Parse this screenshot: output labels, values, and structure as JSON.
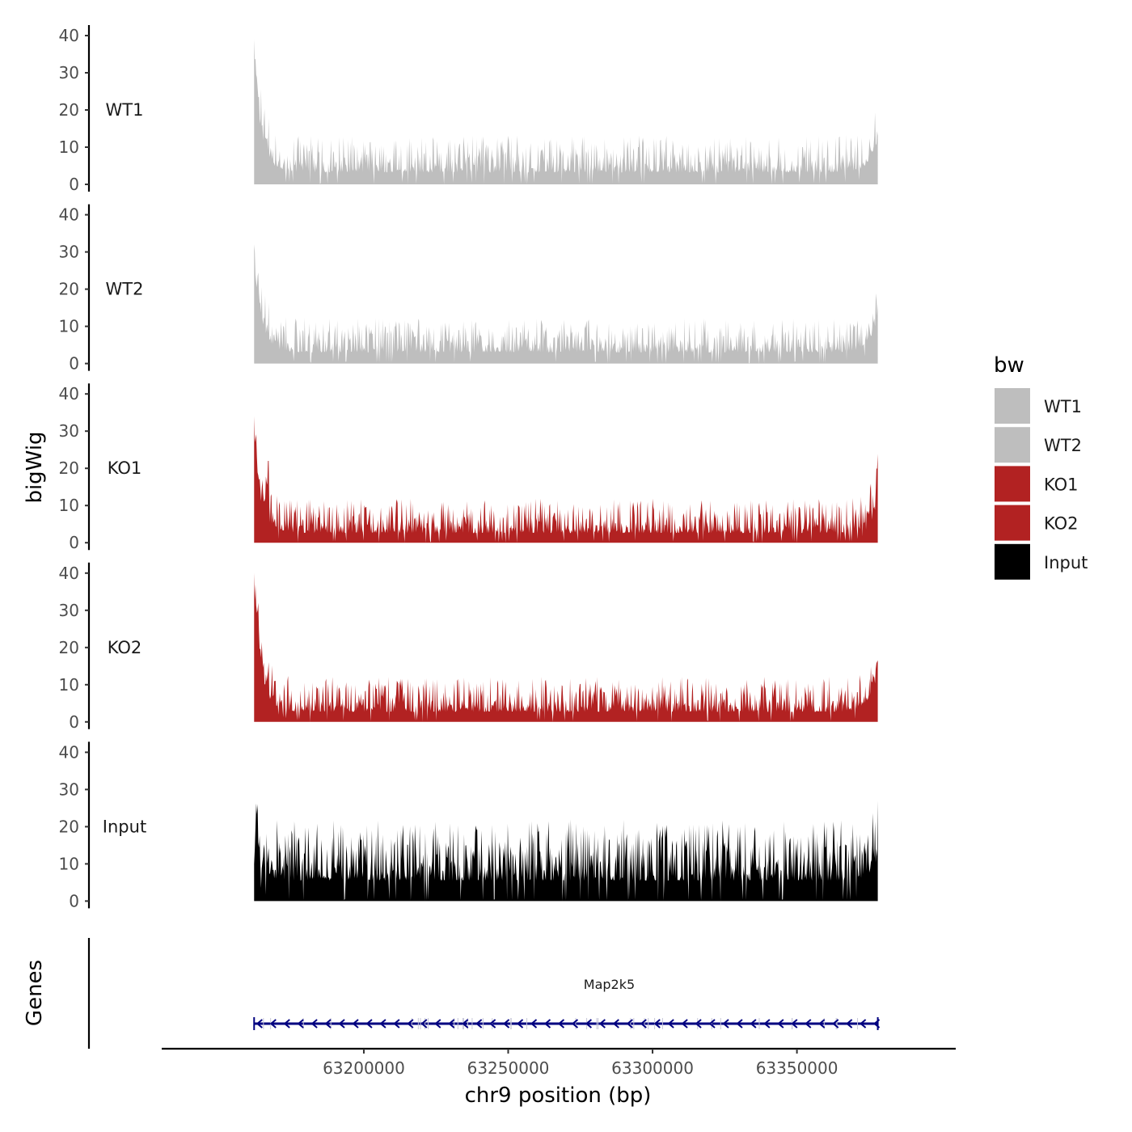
{
  "chart_data": {
    "type": "area",
    "chromosome": "chr9",
    "xlabel": "chr9 position (bp)",
    "ylabel_tracks": "bigWig",
    "ylabel_genes": "Genes",
    "xlim": [
      63130000,
      63405000
    ],
    "data_range": [
      63162000,
      63378000
    ],
    "x_ticks": [
      63200000,
      63250000,
      63300000,
      63350000
    ],
    "x_tick_labels": [
      "63200000",
      "63250000",
      "63300000",
      "63350000"
    ],
    "ylim": [
      0,
      40
    ],
    "y_ticks": [
      0,
      10,
      20,
      30,
      40
    ],
    "y_tick_labels": [
      "0",
      "10",
      "20",
      "30",
      "40"
    ],
    "legend": {
      "title": "bw",
      "position": "right",
      "entries": [
        {
          "label": "WT1",
          "color": "#bebebe"
        },
        {
          "label": "WT2",
          "color": "#bebebe"
        },
        {
          "label": "KO1",
          "color": "#b22222"
        },
        {
          "label": "KO2",
          "color": "#b22222"
        },
        {
          "label": "Input",
          "color": "#000000"
        }
      ]
    },
    "tracks": [
      {
        "name": "WT1",
        "color": "#bebebe",
        "seed": 11,
        "start_peak": 39,
        "end_peak": 14,
        "baseline": 3.2,
        "noise": 4.5,
        "spikes": [
          [
            63181000,
            9
          ],
          [
            63201000,
            8
          ],
          [
            63221000,
            8
          ],
          [
            63262000,
            8
          ],
          [
            63295000,
            10
          ],
          [
            63352000,
            10
          ],
          [
            63366000,
            8
          ]
        ]
      },
      {
        "name": "WT2",
        "color": "#bebebe",
        "seed": 23,
        "start_peak": 32,
        "end_peak": 14,
        "baseline": 3.0,
        "noise": 4.2,
        "spikes": [
          [
            63165500,
            12
          ],
          [
            63203000,
            8
          ],
          [
            63233000,
            9
          ],
          [
            63266000,
            7
          ],
          [
            63318000,
            8
          ],
          [
            63372000,
            10
          ]
        ]
      },
      {
        "name": "KO1",
        "color": "#b22222",
        "seed": 37,
        "start_peak": 34,
        "end_peak": 16,
        "baseline": 2.6,
        "noise": 4.2,
        "spikes": [
          [
            63167000,
            22
          ],
          [
            63170000,
            8
          ],
          [
            63188000,
            9
          ],
          [
            63236000,
            6
          ],
          [
            63266000,
            8
          ],
          [
            63348000,
            9
          ]
        ]
      },
      {
        "name": "KO2",
        "color": "#b22222",
        "seed": 51,
        "start_peak": 40,
        "end_peak": 15,
        "baseline": 2.7,
        "noise": 4.3,
        "spikes": [
          [
            63169000,
            11
          ],
          [
            63184000,
            9
          ],
          [
            63219000,
            8
          ],
          [
            63280000,
            7
          ],
          [
            63300000,
            8
          ],
          [
            63317000,
            7
          ],
          [
            63371000,
            8
          ]
        ]
      },
      {
        "name": "Input",
        "color": "#000000",
        "seed": 73,
        "start_peak": 10,
        "end_peak": 8,
        "baseline": 5.5,
        "noise": 7.5,
        "spikes": [
          [
            63162500,
            14
          ],
          [
            63220000,
            10
          ],
          [
            63247000,
            14
          ],
          [
            63250000,
            13
          ],
          [
            63285000,
            16.5
          ],
          [
            63342000,
            19
          ],
          [
            63367000,
            15
          ]
        ]
      }
    ],
    "genes": [
      {
        "name": "Map2k5",
        "start": 63162000,
        "end": 63378000,
        "strand": "-",
        "color": "#000080",
        "label_x": 63285000
      }
    ]
  }
}
